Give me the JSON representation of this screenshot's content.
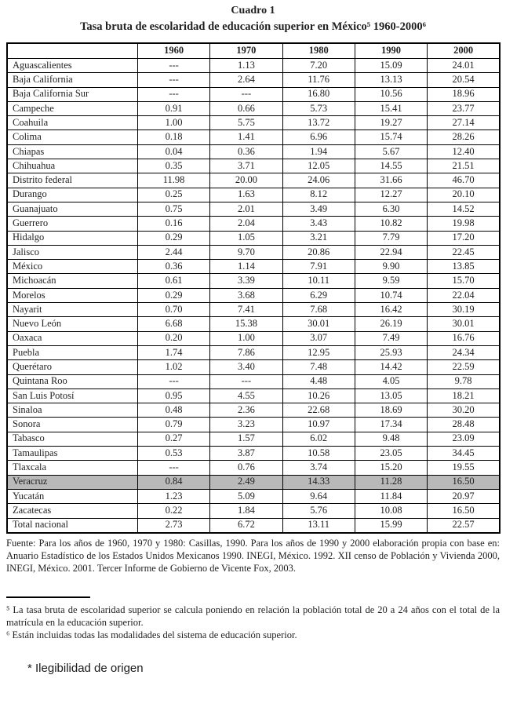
{
  "page": {
    "heading": "Cuadro 1",
    "title": "Tasa bruta de escolaridad de educación superior en México⁵ 1960-2000⁶"
  },
  "table": {
    "columns": [
      "",
      "1960",
      "1970",
      "1980",
      "1990",
      "2000"
    ],
    "rows": [
      {
        "name": "Aguascalientes",
        "values": [
          "---",
          "1.13",
          "7.20",
          "15.09",
          "24.01"
        ],
        "highlight": false
      },
      {
        "name": "Baja California",
        "values": [
          "---",
          "2.64",
          "11.76",
          "13.13",
          "20.54"
        ],
        "highlight": false
      },
      {
        "name": "Baja California Sur",
        "values": [
          "---",
          "---",
          "16.80",
          "10.56",
          "18.96"
        ],
        "highlight": false
      },
      {
        "name": "Campeche",
        "values": [
          "0.91",
          "0.66",
          "5.73",
          "15.41",
          "23.77"
        ],
        "highlight": false
      },
      {
        "name": "Coahuila",
        "values": [
          "1.00",
          "5.75",
          "13.72",
          "19.27",
          "27.14"
        ],
        "highlight": false
      },
      {
        "name": "Colima",
        "values": [
          "0.18",
          "1.41",
          "6.96",
          "15.74",
          "28.26"
        ],
        "highlight": false
      },
      {
        "name": "Chiapas",
        "values": [
          "0.04",
          "0.36",
          "1.94",
          "5.67",
          "12.40"
        ],
        "highlight": false
      },
      {
        "name": "Chihuahua",
        "values": [
          "0.35",
          "3.71",
          "12.05",
          "14.55",
          "21.51"
        ],
        "highlight": false
      },
      {
        "name": "Distrito federal",
        "values": [
          "11.98",
          "20.00",
          "24.06",
          "31.66",
          "46.70"
        ],
        "highlight": false
      },
      {
        "name": "Durango",
        "values": [
          "0.25",
          "1.63",
          "8.12",
          "12.27",
          "20.10"
        ],
        "highlight": false
      },
      {
        "name": "Guanajuato",
        "values": [
          "0.75",
          "2.01",
          "3.49",
          "6.30",
          "14.52"
        ],
        "highlight": false
      },
      {
        "name": "Guerrero",
        "values": [
          "0.16",
          "2.04",
          "3.43",
          "10.82",
          "19.98"
        ],
        "highlight": false
      },
      {
        "name": "Hidalgo",
        "values": [
          "0.29",
          "1.05",
          "3.21",
          "7.79",
          "17.20"
        ],
        "highlight": false
      },
      {
        "name": "Jalisco",
        "values": [
          "2.44",
          "9.70",
          "20.86",
          "22.94",
          "22.45"
        ],
        "highlight": false
      },
      {
        "name": "México",
        "values": [
          "0.36",
          "1.14",
          "7.91",
          "9.90",
          "13.85"
        ],
        "highlight": false
      },
      {
        "name": "Michoacán",
        "values": [
          "0.61",
          "3.39",
          "10.11",
          "9.59",
          "15.70"
        ],
        "highlight": false
      },
      {
        "name": "Morelos",
        "values": [
          "0.29",
          "3.68",
          "6.29",
          "10.74",
          "22.04"
        ],
        "highlight": false
      },
      {
        "name": "Nayarit",
        "values": [
          "0.70",
          "7.41",
          "7.68",
          "16.42",
          "30.19"
        ],
        "highlight": false
      },
      {
        "name": "Nuevo León",
        "values": [
          "6.68",
          "15.38",
          "30.01",
          "26.19",
          "30.01"
        ],
        "highlight": false
      },
      {
        "name": "Oaxaca",
        "values": [
          "0.20",
          "1.00",
          "3.07",
          "7.49",
          "16.76"
        ],
        "highlight": false
      },
      {
        "name": "Puebla",
        "values": [
          "1.74",
          "7.86",
          "12.95",
          "25.93",
          "24.34"
        ],
        "highlight": false
      },
      {
        "name": "Querétaro",
        "values": [
          "1.02",
          "3.40",
          "7.48",
          "14.42",
          "22.59"
        ],
        "highlight": false
      },
      {
        "name": "Quintana Roo",
        "values": [
          "---",
          "---",
          "4.48",
          "4.05",
          "9.78"
        ],
        "highlight": false
      },
      {
        "name": "San Luis Potosí",
        "values": [
          "0.95",
          "4.55",
          "10.26",
          "13.05",
          "18.21"
        ],
        "highlight": false
      },
      {
        "name": "Sinaloa",
        "values": [
          "0.48",
          "2.36",
          "22.68",
          "18.69",
          "30.20"
        ],
        "highlight": false
      },
      {
        "name": "Sonora",
        "values": [
          "0.79",
          "3.23",
          "10.97",
          "17.34",
          "28.48"
        ],
        "highlight": false
      },
      {
        "name": "Tabasco",
        "values": [
          "0.27",
          "1.57",
          "6.02",
          "9.48",
          "23.09"
        ],
        "highlight": false
      },
      {
        "name": "Tamaulipas",
        "values": [
          "0.53",
          "3.87",
          "10.58",
          "23.05",
          "34.45"
        ],
        "highlight": false
      },
      {
        "name": "Tlaxcala",
        "values": [
          "---",
          "0.76",
          "3.74",
          "15.20",
          "19.55"
        ],
        "highlight": false
      },
      {
        "name": "Veracruz",
        "values": [
          "0.84",
          "2.49",
          "14.33",
          "11.28",
          "16.50"
        ],
        "highlight": true
      },
      {
        "name": "Yucatán",
        "values": [
          "1.23",
          "5.09",
          "9.64",
          "11.84",
          "20.97"
        ],
        "highlight": false
      },
      {
        "name": "Zacatecas",
        "values": [
          "0.22",
          "1.84",
          "5.76",
          "10.08",
          "16.50"
        ],
        "highlight": false
      },
      {
        "name": "Total nacional",
        "values": [
          "2.73",
          "6.72",
          "13.11",
          "15.99",
          "22.57"
        ],
        "highlight": false
      }
    ]
  },
  "source": "Fuente: Para los años de 1960, 1970 y 1980: Casillas, 1990. Para los años de 1990 y 2000 elaboración propia con base en: Anuario Estadístico de los Estados Unidos Mexicanos 1990. INEGI, México. 1992. XII censo de Población y Vivienda 2000, INEGI, México. 2001. Tercer Informe de Gobierno de Vicente Fox, 2003.",
  "footnotes": [
    "⁵ La tasa bruta de escolaridad superior se calcula poniendo en relación la población total de 20 a 24 años con el total de la matrícula en la educación superior.",
    "⁶ Están incluidas todas las modalidades del sistema de educación superior."
  ],
  "legibility_note": "* Ilegibilidad de origen",
  "colors": {
    "highlight_row": "#b9b9b9",
    "text": "#1f1f1f",
    "border": "#000000",
    "background": "#ffffff"
  }
}
